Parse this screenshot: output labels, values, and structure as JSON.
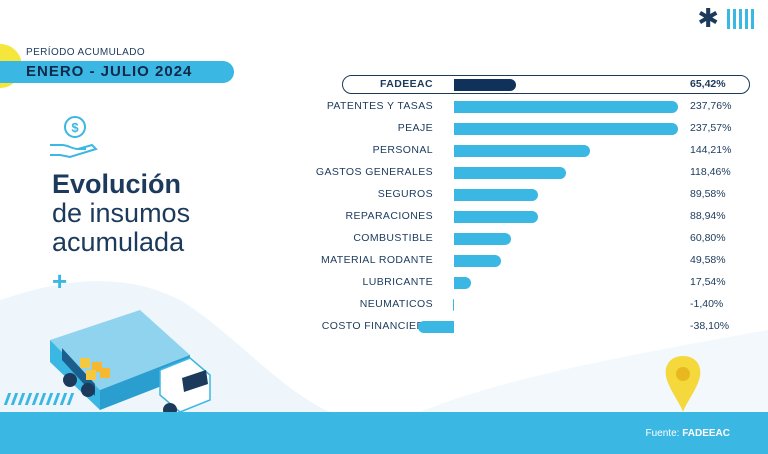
{
  "header": {
    "periodo_label": "PERÍODO ACUMULADO",
    "periodo_value": "ENERO - JULIO 2024"
  },
  "title": {
    "line1": "Evolución",
    "line2": "de insumos",
    "line3": "acumulada"
  },
  "footer": {
    "source_prefix": "Fuente: ",
    "source_name": "FADEEAC"
  },
  "icons": {
    "logo": "asterisk-logo-icon",
    "money": "money-hand-icon",
    "plus": "plus-icon",
    "truck": "truck-illustration",
    "pin": "location-pin-icon"
  },
  "colors": {
    "accent": "#3bb7e3",
    "dark": "#1b3a5c",
    "highlight_bar": "#10325a",
    "yellow": "#f5e63c"
  },
  "chart_data": {
    "type": "bar",
    "orientation": "horizontal",
    "categories": [
      "FADEEAC",
      "PATENTES Y TASAS",
      "PEAJE",
      "PERSONAL",
      "GASTOS GENERALES",
      "SEGUROS",
      "REPARACIONES",
      "COMBUSTIBLE",
      "MATERIAL RODANTE",
      "LUBRICANTE",
      "NEUMATICOS",
      "COSTO FINANCIERO"
    ],
    "values": [
      65.42,
      237.76,
      237.57,
      144.21,
      118.46,
      89.58,
      88.94,
      60.8,
      49.58,
      17.54,
      -1.4,
      -38.1
    ],
    "value_labels": [
      "65,42%",
      "237,76%",
      "237,57%",
      "144,21%",
      "118,46%",
      "89,58%",
      "88,94%",
      "60,80%",
      "49,58%",
      "17,54%",
      "-1,40%",
      "-38,10%"
    ],
    "highlight": "FADEEAC",
    "title": "",
    "xlabel": "",
    "ylabel": "",
    "grid": false
  }
}
